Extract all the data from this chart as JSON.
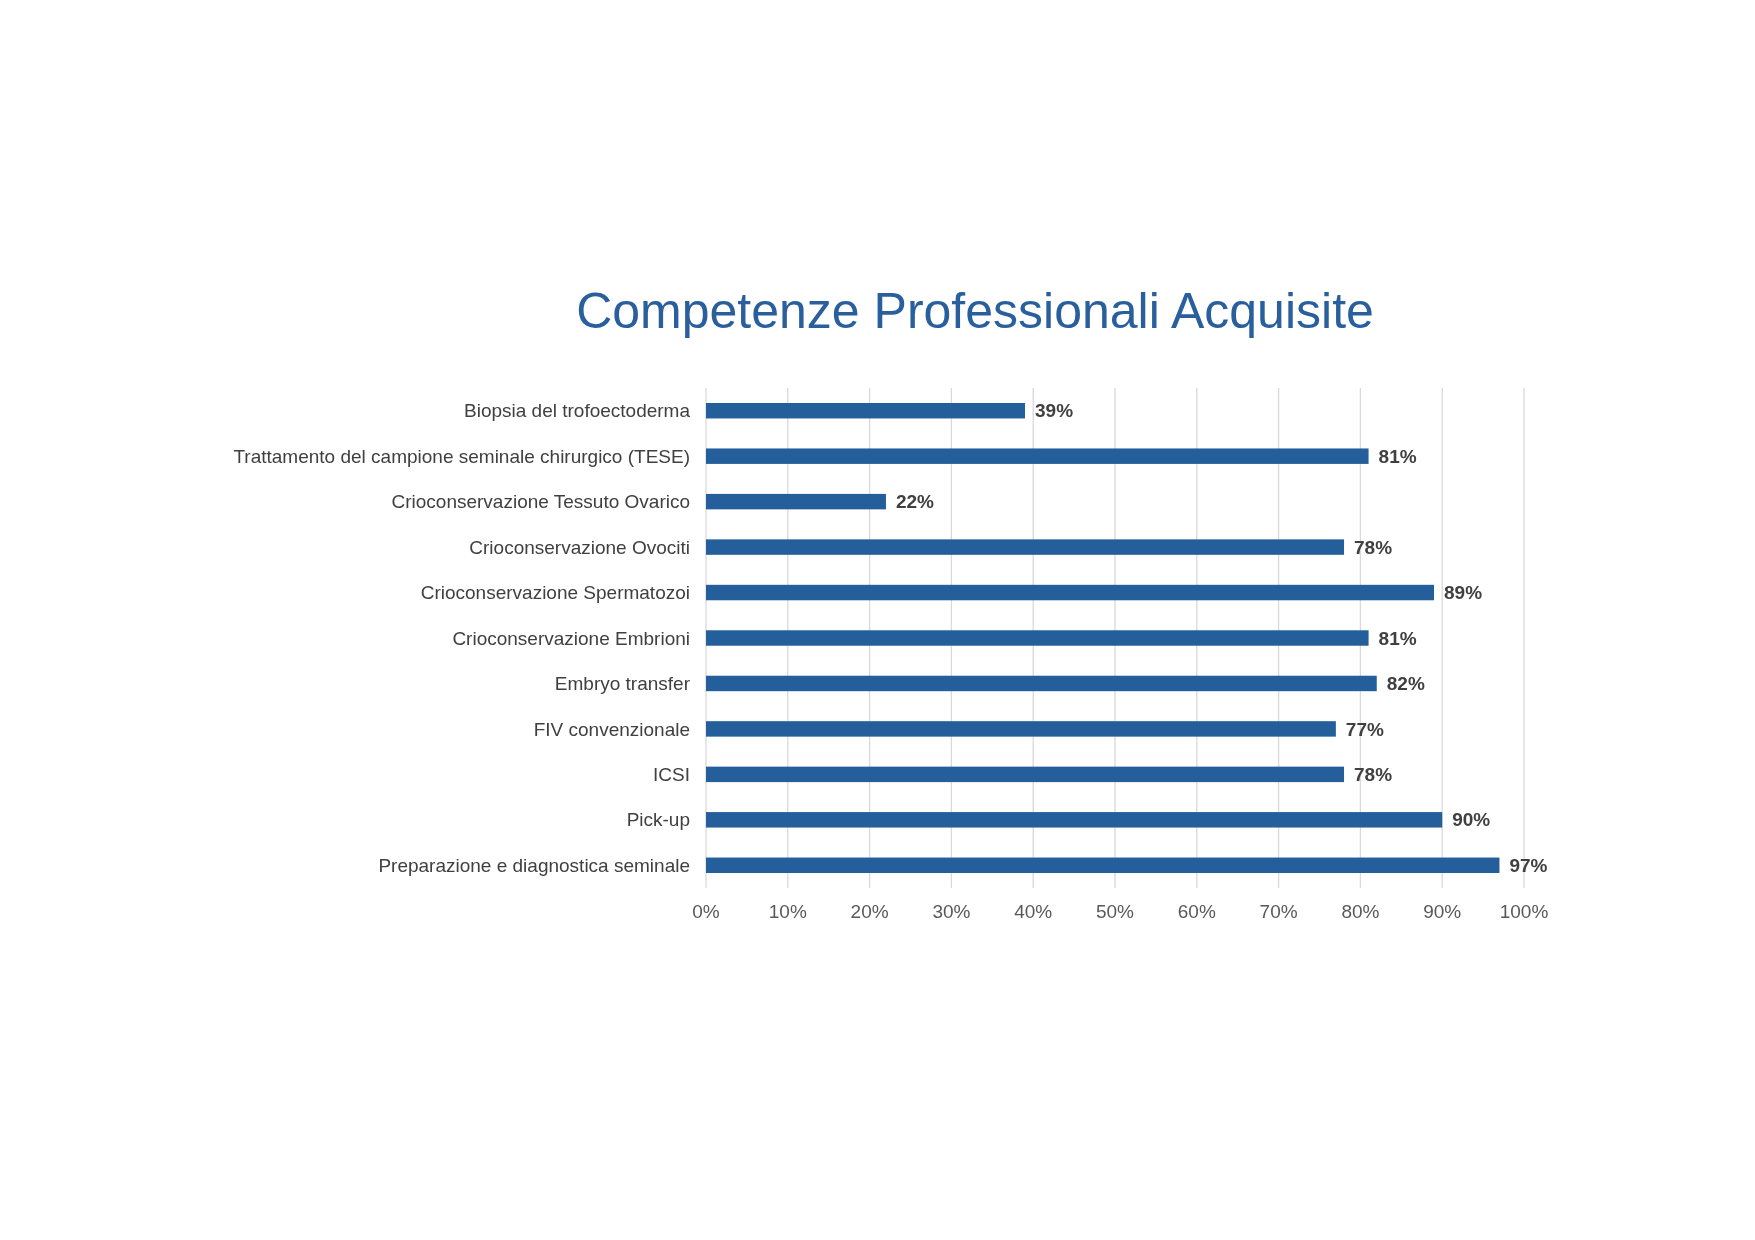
{
  "chart_data": {
    "type": "bar",
    "orientation": "horizontal",
    "title": "Competenze Professionali Acquisite",
    "categories": [
      "Biopsia del trofoectoderma",
      "Trattamento del campione seminale chirurgico (TESE)",
      "Crioconservazione Tessuto Ovarico",
      "Crioconservazione Ovociti",
      "Crioconservazione Spermatozoi",
      "Crioconservazione Embrioni",
      "Embryo transfer",
      "FIV convenzionale",
      "ICSI",
      "Pick-up",
      "Preparazione e diagnostica seminale"
    ],
    "values": [
      39,
      81,
      22,
      78,
      89,
      81,
      82,
      77,
      78,
      90,
      97
    ],
    "value_labels": [
      "39%",
      "81%",
      "22%",
      "78%",
      "89%",
      "81%",
      "82%",
      "77%",
      "78%",
      "90%",
      "97%"
    ],
    "color": "#245f9c",
    "xlim": [
      0,
      100
    ],
    "xticks": [
      {
        "value": 0,
        "label": "0%"
      },
      {
        "value": 10,
        "label": "10%"
      },
      {
        "value": 20,
        "label": "20%"
      },
      {
        "value": 30,
        "label": "30%"
      },
      {
        "value": 40,
        "label": "40%"
      },
      {
        "value": 50,
        "label": "50%"
      },
      {
        "value": 60,
        "label": "60%"
      },
      {
        "value": 70,
        "label": "70%"
      },
      {
        "value": 80,
        "label": "80%"
      },
      {
        "value": 90,
        "label": "90%"
      },
      {
        "value": 100,
        "label": "100%"
      }
    ],
    "grid": "x"
  }
}
